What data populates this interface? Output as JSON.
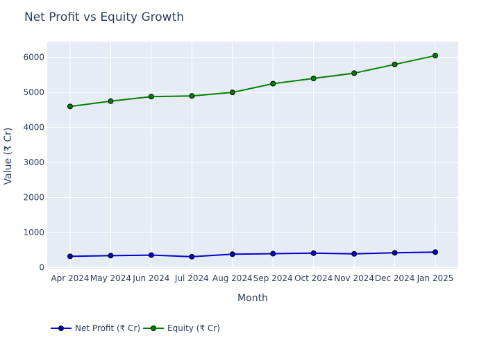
{
  "chart_data": {
    "type": "line",
    "title": "Net Profit vs Equity Growth",
    "xlabel": "Month",
    "ylabel": "Value (₹ Cr)",
    "ylim": [
      -50,
      6450
    ],
    "yticks": [
      0,
      1000,
      2000,
      3000,
      4000,
      5000,
      6000
    ],
    "grid": true,
    "legend_position": "bottom-left",
    "categories": [
      "Apr 2024",
      "May 2024",
      "Jun 2024",
      "Jul 2024",
      "Aug 2024",
      "Sep 2024",
      "Oct 2024",
      "Nov 2024",
      "Dec 2024",
      "Jan 2025"
    ],
    "series": [
      {
        "name": "Net Profit (₹ Cr)",
        "color": "#0000cd",
        "values": [
          320,
          340,
          355,
          310,
          380,
          395,
          410,
          390,
          420,
          440
        ]
      },
      {
        "name": "Equity (₹ Cr)",
        "color": "#008000",
        "values": [
          4600,
          4750,
          4880,
          4900,
          5000,
          5250,
          5400,
          5550,
          5800,
          6050
        ]
      }
    ]
  }
}
